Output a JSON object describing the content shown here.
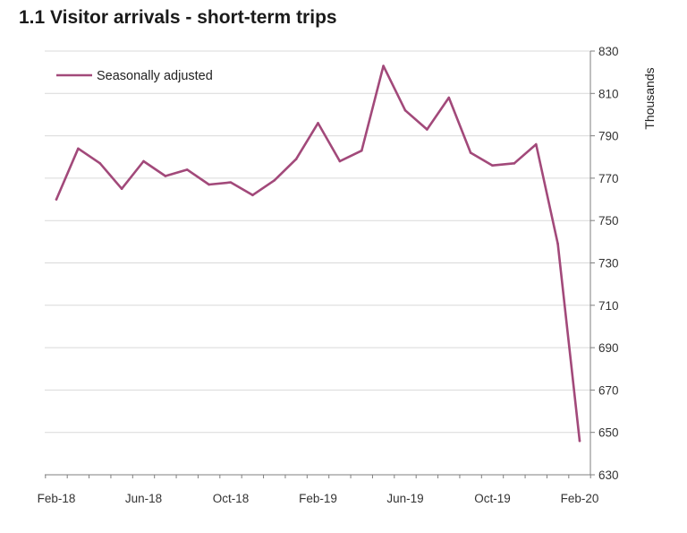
{
  "chart_data": {
    "type": "line",
    "title": "1.1 Visitor arrivals - short-term trips",
    "xlabel": "",
    "ylabel": "Thousands",
    "ylim": [
      630,
      830
    ],
    "y_ticks": [
      630,
      650,
      670,
      690,
      710,
      730,
      750,
      770,
      790,
      810,
      830
    ],
    "y_axis_side": "right",
    "x_tick_labels": [
      "Feb-18",
      "Jun-18",
      "Oct-18",
      "Feb-19",
      "Jun-19",
      "Oct-19",
      "Feb-20"
    ],
    "categories": [
      "Feb-18",
      "Mar-18",
      "Apr-18",
      "May-18",
      "Jun-18",
      "Jul-18",
      "Aug-18",
      "Sep-18",
      "Oct-18",
      "Nov-18",
      "Dec-18",
      "Jan-19",
      "Feb-19",
      "Mar-19",
      "Apr-19",
      "May-19",
      "Jun-19",
      "Jul-19",
      "Aug-19",
      "Sep-19",
      "Oct-19",
      "Nov-19",
      "Dec-19",
      "Jan-20",
      "Feb-20"
    ],
    "series": [
      {
        "name": "Seasonally adjusted",
        "color": "#a2497a",
        "values": [
          760,
          784,
          777,
          765,
          778,
          771,
          774,
          767,
          768,
          762,
          769,
          779,
          796,
          778,
          783,
          823,
          802,
          793,
          808,
          782,
          776,
          777,
          786,
          739,
          646
        ]
      }
    ],
    "grid": true,
    "legend_position": "top-left"
  }
}
